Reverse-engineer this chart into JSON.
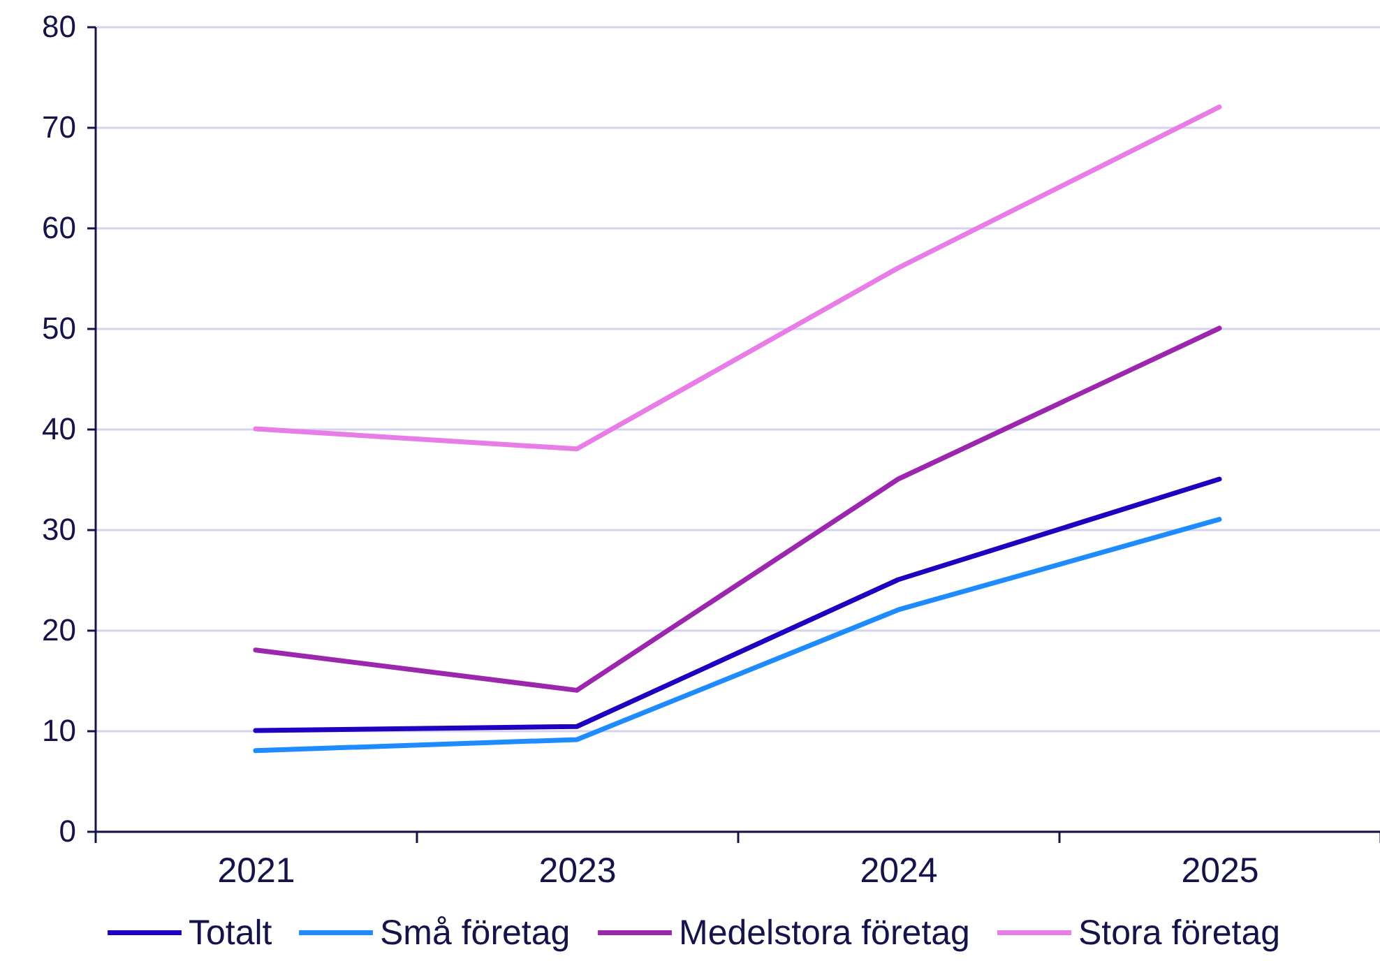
{
  "chart_data": {
    "type": "line",
    "categories": [
      "2021",
      "2023",
      "2024",
      "2025"
    ],
    "series": [
      {
        "name": "Totalt",
        "color": "#2000c0",
        "values": [
          10,
          10.4,
          25,
          35
        ]
      },
      {
        "name": "Små företag",
        "color": "#1e8cff",
        "values": [
          8,
          9.1,
          22,
          31
        ]
      },
      {
        "name": "Medelstora företag",
        "color": "#9c27ae",
        "values": [
          18,
          14,
          35,
          50
        ]
      },
      {
        "name": "Stora företag",
        "color": "#e87de8",
        "values": [
          40,
          38,
          56,
          72
        ]
      }
    ],
    "ylim": [
      0,
      80
    ],
    "yticks": [
      0,
      10,
      20,
      30,
      40,
      50,
      60,
      70,
      80
    ],
    "grid": "y",
    "legend": "bottom"
  }
}
